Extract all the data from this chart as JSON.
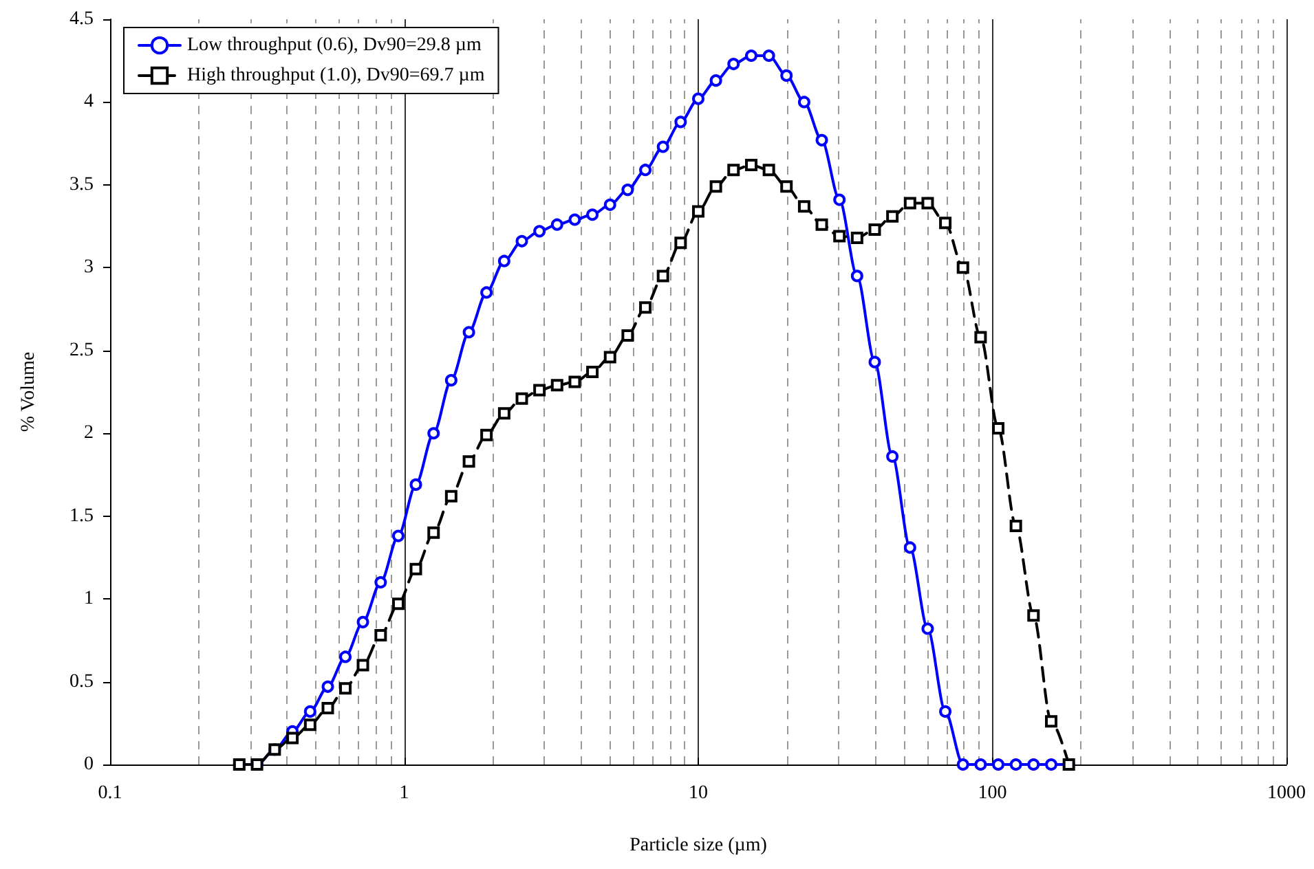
{
  "chart_data": {
    "type": "line",
    "xlabel": "Particle size (µm)",
    "ylabel": "% Volume",
    "log": "x",
    "grid": "x",
    "legend": "top left",
    "xlim": [
      0.1,
      1000
    ],
    "xticks": [
      0.1,
      1,
      10,
      100,
      1000
    ],
    "ylim": [
      0,
      4.5
    ],
    "yticks": [
      0,
      0.5,
      1,
      1.5,
      2,
      2.5,
      3,
      3.5,
      4,
      4.5
    ],
    "x": [
      0.275,
      0.316,
      0.363,
      0.417,
      0.479,
      0.55,
      0.631,
      0.724,
      0.832,
      0.955,
      1.096,
      1.259,
      1.445,
      1.66,
      1.905,
      2.188,
      2.512,
      2.884,
      3.311,
      3.802,
      4.365,
      5.012,
      5.754,
      6.607,
      7.586,
      8.71,
      10,
      11.48,
      13.18,
      15.14,
      17.38,
      19.95,
      22.91,
      26.3,
      30.2,
      34.67,
      39.81,
      45.71,
      52.48,
      60.26,
      69.18,
      79.43,
      91.2,
      104.7,
      120.2,
      138,
      158.5,
      182
    ],
    "series": [
      {
        "name": "Low throughput (0.6), Dv90=29.8 µm",
        "color": "#0000ff",
        "marker": "circle",
        "line_style": "solid",
        "values": [
          0,
          0,
          0.09,
          0.2,
          0.32,
          0.47,
          0.65,
          0.86,
          1.1,
          1.38,
          1.69,
          2.0,
          2.32,
          2.61,
          2.85,
          3.04,
          3.16,
          3.22,
          3.26,
          3.29,
          3.32,
          3.38,
          3.47,
          3.59,
          3.73,
          3.88,
          4.02,
          4.13,
          4.23,
          4.28,
          4.28,
          4.16,
          4.0,
          3.77,
          3.41,
          2.95,
          2.43,
          1.86,
          1.31,
          0.82,
          0.32,
          0,
          0,
          0,
          0,
          0,
          0,
          0
        ]
      },
      {
        "name": "High throughput (1.0), Dv90=69.7 µm",
        "color": "#000000",
        "marker": "square",
        "line_style": "dashed",
        "values": [
          0,
          0,
          0.09,
          0.16,
          0.24,
          0.34,
          0.46,
          0.6,
          0.78,
          0.97,
          1.18,
          1.4,
          1.62,
          1.83,
          1.99,
          2.12,
          2.21,
          2.26,
          2.29,
          2.31,
          2.37,
          2.46,
          2.59,
          2.76,
          2.95,
          3.15,
          3.34,
          3.49,
          3.59,
          3.62,
          3.59,
          3.49,
          3.37,
          3.26,
          3.19,
          3.18,
          3.23,
          3.31,
          3.39,
          3.39,
          3.27,
          3.0,
          2.58,
          2.03,
          1.44,
          0.9,
          0.26,
          0
        ]
      }
    ]
  }
}
